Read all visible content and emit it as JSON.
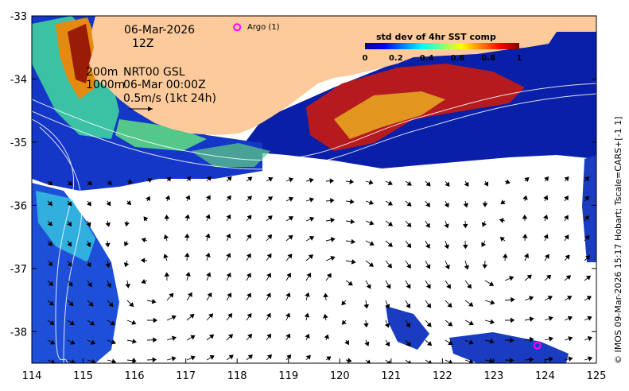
{
  "map": {
    "date_line": "06-Mar-2026",
    "time_line": "12Z",
    "depth_line_1": "200m",
    "depth_line_2": "1000m",
    "product_line": "NRT00 GSL",
    "product_time_line": "06-Mar 00:00Z",
    "scale_line": "0.5m/s (1kt 24h)",
    "argo_legend": "Argo (1)",
    "side_credit": "© IMOS 09-Mar-2026 15:17 Hobart; Tscale=CARS+[-1 1]",
    "colors": {
      "land": "#fdcb9b",
      "ocean_nodata": "#ffffff",
      "argo_marker": "#ff00ff",
      "contour": "#ffffff",
      "arrow": "#000000"
    }
  },
  "colorbar": {
    "title": "std dev of 4hr SST comp",
    "ticks": [
      "0",
      "0.2",
      "0.4",
      "0.6",
      "0.8",
      "1"
    ],
    "range": [
      0,
      1
    ],
    "colormap": "jet"
  },
  "x_axis": {
    "range": [
      114,
      125
    ],
    "ticks": [
      "114",
      "115",
      "116",
      "117",
      "118",
      "119",
      "120",
      "121",
      "122",
      "123",
      "124",
      "125"
    ]
  },
  "y_axis": {
    "range": [
      -38.5,
      -33
    ],
    "ticks": [
      "-33",
      "-34",
      "-35",
      "-36",
      "-37",
      "-38"
    ]
  },
  "argo_floats": [
    {
      "lon": 123.85,
      "lat": -38.22
    }
  ],
  "argo_legend_marker": {
    "lon": 118.0,
    "lat": -33.18
  }
}
